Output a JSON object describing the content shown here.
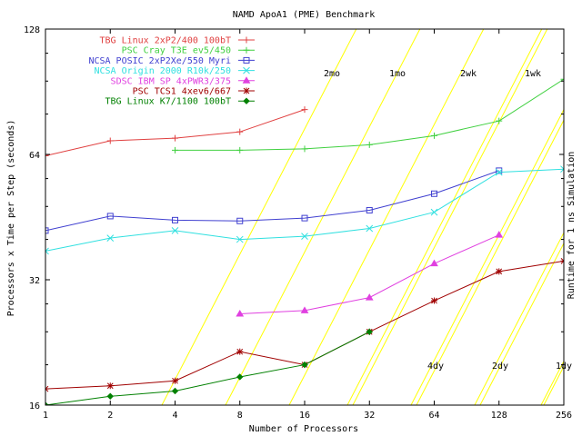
{
  "chart_data": {
    "type": "line",
    "title": "NAMD ApoA1 (PME) Benchmark",
    "xlabel": "Number of Processors",
    "ylabel": "Processors x Time per Step (seconds)",
    "y2label": "Runtime for 1 ns Simulation",
    "x_scale": "log2",
    "y_scale": "log2",
    "xlim": [
      1,
      256
    ],
    "ylim": [
      16,
      128
    ],
    "x_ticks": [
      1,
      2,
      4,
      8,
      16,
      32,
      64,
      128,
      256
    ],
    "y_ticks": [
      16,
      32,
      64,
      128
    ],
    "grid": false,
    "legend_position": "top-left",
    "series": [
      {
        "name": "TBG Linux 2xP2/400 100bT",
        "color": "#e04040",
        "marker": "plus",
        "points": [
          [
            1,
            63.5
          ],
          [
            2,
            69
          ],
          [
            4,
            70
          ],
          [
            8,
            72.5
          ],
          [
            16,
            82
          ]
        ]
      },
      {
        "name": "PSC Cray T3E ev5/450",
        "color": "#40d040",
        "marker": "plus",
        "points": [
          [
            4,
            65.5
          ],
          [
            8,
            65.5
          ],
          [
            16,
            66
          ],
          [
            32,
            67.5
          ],
          [
            64,
            71
          ],
          [
            128,
            77
          ],
          [
            256,
            97
          ]
        ]
      },
      {
        "name": "NCSA POSIC 2xP2Xe/550 Myri",
        "color": "#4040d0",
        "marker": "square",
        "points": [
          [
            1,
            42
          ],
          [
            2,
            45.5
          ],
          [
            4,
            44.5
          ],
          [
            8,
            44.3
          ],
          [
            16,
            45
          ],
          [
            32,
            47
          ],
          [
            64,
            51.5
          ],
          [
            128,
            58.5
          ]
        ]
      },
      {
        "name": "NCSA Origin 2000 R10k/250",
        "color": "#30e0e0",
        "marker": "cross",
        "points": [
          [
            1,
            37.5
          ],
          [
            2,
            40.3
          ],
          [
            4,
            42
          ],
          [
            8,
            40
          ],
          [
            16,
            40.7
          ],
          [
            32,
            42.5
          ],
          [
            64,
            46.5
          ],
          [
            128,
            58
          ],
          [
            256,
            59
          ]
        ]
      },
      {
        "name": "SDSC IBM SP 4xPWR3/375",
        "color": "#e040e0",
        "marker": "triangle",
        "points": [
          [
            8,
            26.5
          ],
          [
            16,
            27
          ],
          [
            32,
            29
          ],
          [
            64,
            35
          ],
          [
            128,
            41
          ]
        ]
      },
      {
        "name": "PSC TCS1 4xev6/667",
        "color": "#a00000",
        "marker": "star",
        "points": [
          [
            1,
            17.5
          ],
          [
            2,
            17.8
          ],
          [
            4,
            18.3
          ],
          [
            8,
            21.5
          ],
          [
            16,
            20
          ],
          [
            32,
            24
          ],
          [
            64,
            28.5
          ],
          [
            128,
            33.5
          ],
          [
            256,
            35.5
          ]
        ]
      },
      {
        "name": "TBG Linux K7/1100 100bT",
        "color": "#008000",
        "marker": "diamond",
        "points": [
          [
            1,
            16
          ],
          [
            2,
            16.8
          ],
          [
            4,
            17.3
          ],
          [
            8,
            18.7
          ],
          [
            16,
            20
          ],
          [
            32,
            24
          ]
        ]
      }
    ],
    "runtime_lines": {
      "color": "#ffff00",
      "upper_labels": [
        "2mo",
        "1mo",
        "2wk",
        "1wk"
      ],
      "lower_labels": [
        "4dy",
        "2dy",
        "1dy"
      ]
    }
  }
}
